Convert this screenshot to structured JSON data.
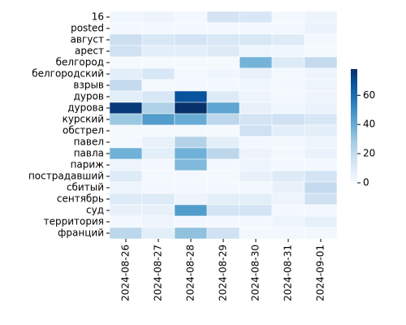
{
  "chart_data": {
    "type": "heatmap",
    "colormap": "Blues",
    "x": [
      "2024-08-26",
      "2024-08-27",
      "2024-08-28",
      "2024-08-29",
      "2024-08-30",
      "2024-08-31",
      "2024-09-01"
    ],
    "y": [
      "16",
      "posted",
      "август",
      "арест",
      "белгород",
      "белгородский",
      "взрыв",
      "дуров",
      "дурова",
      "курский",
      "обстрел",
      "павел",
      "павла",
      "париж",
      "пострадавший",
      "сбитый",
      "сентябрь",
      "суд",
      "территория",
      "франций"
    ],
    "values": [
      [
        3,
        4,
        2,
        14,
        12,
        2,
        4
      ],
      [
        2,
        2,
        2,
        2,
        2,
        2,
        5
      ],
      [
        17,
        12,
        14,
        12,
        12,
        10,
        2
      ],
      [
        16,
        8,
        8,
        10,
        4,
        3,
        1
      ],
      [
        1,
        1,
        1,
        1,
        37,
        10,
        20
      ],
      [
        8,
        12,
        2,
        3,
        6,
        2,
        4
      ],
      [
        20,
        1,
        2,
        2,
        3,
        2,
        4
      ],
      [
        8,
        12,
        68,
        10,
        4,
        2,
        4
      ],
      [
        75,
        25,
        78,
        42,
        6,
        3,
        5
      ],
      [
        30,
        45,
        40,
        22,
        14,
        16,
        12
      ],
      [
        1,
        1,
        1,
        1,
        16,
        8,
        8
      ],
      [
        2,
        6,
        24,
        8,
        2,
        2,
        4
      ],
      [
        38,
        8,
        38,
        22,
        4,
        2,
        5
      ],
      [
        4,
        2,
        35,
        2,
        4,
        2,
        2
      ],
      [
        10,
        2,
        2,
        2,
        6,
        10,
        14
      ],
      [
        4,
        2,
        2,
        2,
        2,
        6,
        20
      ],
      [
        10,
        10,
        4,
        8,
        8,
        4,
        16
      ],
      [
        6,
        6,
        45,
        14,
        14,
        2,
        2
      ],
      [
        2,
        4,
        2,
        2,
        2,
        4,
        7
      ],
      [
        22,
        8,
        32,
        16,
        2,
        2,
        2
      ]
    ],
    "clim": [
      0,
      78
    ],
    "cticks": [
      0,
      20,
      40,
      60
    ]
  }
}
